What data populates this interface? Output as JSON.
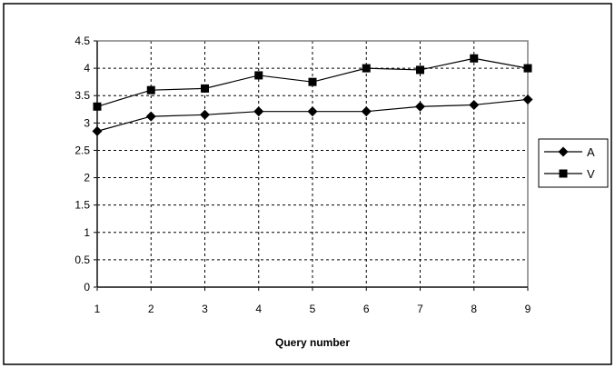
{
  "chart_data": {
    "type": "line",
    "title": "",
    "xlabel": "Query number",
    "ylabel": "",
    "x": [
      1,
      2,
      3,
      4,
      5,
      6,
      7,
      8,
      9
    ],
    "xlim": [
      1,
      9
    ],
    "ylim": [
      0,
      4.5
    ],
    "yticks": [
      "0",
      "0.5",
      "1",
      "1.5",
      "2",
      "2.5",
      "3",
      "3.5",
      "4",
      "4.5"
    ],
    "xticks": [
      "1",
      "2",
      "3",
      "4",
      "5",
      "6",
      "7",
      "8",
      "9"
    ],
    "grid": true,
    "legend_position": "right",
    "series": [
      {
        "name": "A",
        "marker": "diamond",
        "values": [
          2.85,
          3.12,
          3.15,
          3.21,
          3.21,
          3.21,
          3.3,
          3.33,
          3.43
        ]
      },
      {
        "name": "V",
        "marker": "square",
        "values": [
          3.3,
          3.6,
          3.63,
          3.87,
          3.75,
          4.0,
          3.97,
          4.18,
          4.0
        ]
      }
    ]
  }
}
